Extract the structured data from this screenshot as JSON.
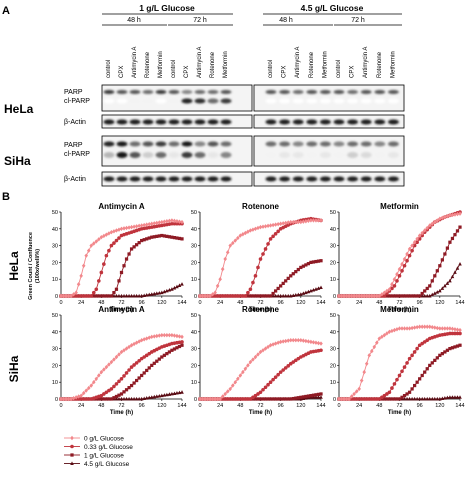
{
  "panel_a": {
    "letter": "A",
    "glucose_groups": [
      "1 g/L Glucose",
      "4.5 g/L Glucose"
    ],
    "time_groups": [
      "48 h",
      "72 h",
      "48 h",
      "72 h"
    ],
    "lane_labels": [
      "control",
      "CPX",
      "Antimycin A",
      "Rotenone",
      "Metformin",
      "control",
      "CPX",
      "Antimycin A",
      "Rotenone",
      "Metformin",
      "control",
      "CPX",
      "Antimycin A",
      "Rotenone",
      "Metformin",
      "control",
      "CPX",
      "Antimycin A",
      "Rotenone",
      "Metformin"
    ],
    "cell_lines": [
      {
        "name": "HeLa",
        "bands": [
          "PARP",
          "cl-PARP",
          "β-Actin"
        ]
      },
      {
        "name": "SiHa",
        "bands": [
          "PARP",
          "cl-PARP",
          "β-Actin"
        ]
      }
    ]
  },
  "panel_b": {
    "letter": "B",
    "y_label_1": "Green Count / Confluence",
    "y_label_2": "(100x/well/%)",
    "x_label": "Time (h)",
    "rows": [
      "HeLa",
      "SiHa"
    ],
    "colors": {
      "g0": "#f2888c",
      "g033": "#c0343d",
      "g1": "#8e1a24",
      "g45": "#5a0c14"
    },
    "legend": [
      {
        "key": "g0",
        "label": "0 g/L Glucose",
        "marker": "diamond"
      },
      {
        "key": "g033",
        "label": "0.33 g/L Glucose",
        "marker": "circle"
      },
      {
        "key": "g1",
        "label": "1 g/L Glucose",
        "marker": "square"
      },
      {
        "key": "g45",
        "label": "4.5 g/L Glucose",
        "marker": "triangle"
      }
    ]
  },
  "chart_data": [
    {
      "type": "line",
      "title": "Antimycin A",
      "row": "HeLa",
      "xlabel": "Time (h)",
      "xlim": [
        0,
        144
      ],
      "ylim": [
        0,
        50
      ],
      "xticks": [
        0,
        24,
        48,
        72,
        96,
        120,
        144
      ],
      "yticks": [
        0,
        10,
        20,
        30,
        40,
        50
      ],
      "series": [
        {
          "name": "0 g/L Glucose",
          "key": "g0",
          "x": [
            0,
            12,
            18,
            24,
            30,
            36,
            48,
            60,
            72,
            84,
            96,
            108,
            120,
            132,
            144
          ],
          "y": [
            0,
            0,
            2,
            12,
            24,
            30,
            35,
            38,
            40,
            41,
            42,
            43,
            44,
            45,
            44
          ]
        },
        {
          "name": "0.33 g/L Glucose",
          "key": "g033",
          "x": [
            0,
            36,
            42,
            48,
            54,
            60,
            72,
            84,
            96,
            108,
            120,
            132,
            144
          ],
          "y": [
            0,
            0,
            4,
            14,
            24,
            30,
            36,
            38,
            40,
            41,
            42,
            43,
            43
          ]
        },
        {
          "name": "1 g/L Glucose",
          "key": "g1",
          "x": [
            0,
            60,
            66,
            72,
            78,
            84,
            96,
            108,
            120,
            132,
            144
          ],
          "y": [
            0,
            0,
            4,
            14,
            22,
            28,
            33,
            35,
            36,
            35,
            34
          ]
        },
        {
          "name": "4.5 g/L Glucose",
          "key": "g45",
          "x": [
            0,
            96,
            108,
            120,
            132,
            144
          ],
          "y": [
            0,
            0,
            1,
            2,
            4,
            7
          ]
        }
      ]
    },
    {
      "type": "line",
      "title": "Rotenone",
      "row": "HeLa",
      "xlabel": "Time (h)",
      "xlim": [
        0,
        144
      ],
      "ylim": [
        0,
        50
      ],
      "xticks": [
        0,
        24,
        48,
        72,
        96,
        120,
        144
      ],
      "yticks": [
        0,
        10,
        20,
        30,
        40,
        50
      ],
      "series": [
        {
          "name": "0 g/L Glucose",
          "key": "g0",
          "x": [
            0,
            12,
            18,
            24,
            30,
            36,
            48,
            60,
            72,
            84,
            96,
            108,
            120,
            132,
            144
          ],
          "y": [
            0,
            0,
            2,
            10,
            22,
            30,
            36,
            39,
            41,
            42,
            43,
            44,
            44,
            45,
            45
          ]
        },
        {
          "name": "0.33 g/L Glucose",
          "key": "g033",
          "x": [
            0,
            54,
            60,
            66,
            72,
            84,
            96,
            108,
            120,
            132,
            144
          ],
          "y": [
            0,
            0,
            4,
            12,
            22,
            34,
            40,
            43,
            45,
            46,
            45
          ]
        },
        {
          "name": "1 g/L Glucose",
          "key": "g1",
          "x": [
            0,
            84,
            96,
            108,
            120,
            132,
            144
          ],
          "y": [
            0,
            0,
            6,
            12,
            17,
            20,
            21
          ]
        },
        {
          "name": "4.5 g/L Glucose",
          "key": "g45",
          "x": [
            0,
            108,
            120,
            132,
            144
          ],
          "y": [
            0,
            0,
            1,
            3,
            5
          ]
        }
      ]
    },
    {
      "type": "line",
      "title": "Metformin",
      "row": "HeLa",
      "xlabel": "Time (h)",
      "xlim": [
        0,
        144
      ],
      "ylim": [
        0,
        50
      ],
      "xticks": [
        0,
        24,
        48,
        72,
        96,
        120,
        144
      ],
      "yticks": [
        0,
        10,
        20,
        30,
        40,
        50
      ],
      "series": [
        {
          "name": "0 g/L Glucose",
          "key": "g0",
          "x": [
            0,
            48,
            60,
            72,
            84,
            96,
            108,
            120,
            132,
            144
          ],
          "y": [
            0,
            0,
            4,
            16,
            28,
            36,
            42,
            46,
            48,
            49
          ]
        },
        {
          "name": "0.33 g/L Glucose",
          "key": "g033",
          "x": [
            0,
            54,
            66,
            78,
            90,
            102,
            114,
            126,
            138,
            144
          ],
          "y": [
            0,
            0,
            6,
            18,
            30,
            38,
            44,
            47,
            49,
            50
          ]
        },
        {
          "name": "1 g/L Glucose",
          "key": "g1",
          "x": [
            0,
            96,
            108,
            120,
            132,
            144
          ],
          "y": [
            0,
            0,
            6,
            18,
            32,
            41
          ]
        },
        {
          "name": "4.5 g/L Glucose",
          "key": "g45",
          "x": [
            0,
            108,
            120,
            132,
            144
          ],
          "y": [
            0,
            0,
            3,
            9,
            19
          ]
        }
      ]
    },
    {
      "type": "line",
      "title": "Antimycin A",
      "row": "SiHa",
      "xlabel": "Time (h)",
      "xlim": [
        0,
        144
      ],
      "ylim": [
        0,
        50
      ],
      "xticks": [
        0,
        24,
        48,
        72,
        96,
        120,
        144
      ],
      "yticks": [
        0,
        10,
        20,
        30,
        40,
        50
      ],
      "series": [
        {
          "name": "0 g/L Glucose",
          "key": "g0",
          "x": [
            0,
            12,
            24,
            36,
            48,
            60,
            72,
            84,
            96,
            108,
            120,
            132,
            144
          ],
          "y": [
            0,
            0,
            2,
            8,
            16,
            22,
            28,
            32,
            35,
            37,
            38,
            38,
            37
          ]
        },
        {
          "name": "0.33 g/L Glucose",
          "key": "g033",
          "x": [
            0,
            36,
            48,
            60,
            72,
            84,
            96,
            108,
            120,
            132,
            144
          ],
          "y": [
            0,
            0,
            2,
            6,
            12,
            19,
            24,
            28,
            31,
            33,
            34
          ]
        },
        {
          "name": "1 g/L Glucose",
          "key": "g1",
          "x": [
            0,
            60,
            72,
            84,
            96,
            108,
            120,
            132,
            144
          ],
          "y": [
            0,
            0,
            3,
            8,
            14,
            20,
            25,
            29,
            32
          ]
        },
        {
          "name": "4.5 g/L Glucose",
          "key": "g45",
          "x": [
            0,
            96,
            108,
            120,
            132,
            144
          ],
          "y": [
            0,
            0,
            1,
            2,
            3,
            4
          ]
        }
      ]
    },
    {
      "type": "line",
      "title": "Rotenone",
      "row": "SiHa",
      "xlabel": "Time (h)",
      "xlim": [
        0,
        144
      ],
      "ylim": [
        0,
        50
      ],
      "xticks": [
        0,
        24,
        48,
        72,
        96,
        120,
        144
      ],
      "yticks": [
        0,
        10,
        20,
        30,
        40,
        50
      ],
      "series": [
        {
          "name": "0 g/L Glucose",
          "key": "g0",
          "x": [
            0,
            24,
            36,
            48,
            60,
            72,
            84,
            96,
            108,
            120,
            132,
            144
          ],
          "y": [
            0,
            0,
            6,
            14,
            22,
            28,
            32,
            34,
            35,
            35,
            34,
            33
          ]
        },
        {
          "name": "0.33 g/L Glucose",
          "key": "g033",
          "x": [
            0,
            60,
            72,
            84,
            96,
            108,
            120,
            132,
            144
          ],
          "y": [
            0,
            0,
            4,
            10,
            16,
            21,
            25,
            28,
            29
          ]
        },
        {
          "name": "1 g/L Glucose",
          "key": "g1",
          "x": [
            0,
            108,
            120,
            132,
            144
          ],
          "y": [
            0,
            0,
            1,
            2,
            3
          ]
        },
        {
          "name": "4.5 g/L Glucose",
          "key": "g45",
          "x": [
            0,
            120,
            132,
            144
          ],
          "y": [
            0,
            0,
            1,
            1
          ]
        }
      ]
    },
    {
      "type": "line",
      "title": "Metformin",
      "row": "SiHa",
      "xlabel": "Time (h)",
      "xlim": [
        0,
        144
      ],
      "ylim": [
        0,
        50
      ],
      "xticks": [
        0,
        24,
        48,
        72,
        96,
        120,
        144
      ],
      "yticks": [
        0,
        10,
        20,
        30,
        40,
        50
      ],
      "series": [
        {
          "name": "0 g/L Glucose",
          "key": "g0",
          "x": [
            0,
            12,
            24,
            30,
            36,
            48,
            60,
            72,
            84,
            96,
            108,
            120,
            132,
            144
          ],
          "y": [
            0,
            0,
            6,
            16,
            26,
            36,
            40,
            42,
            42,
            43,
            43,
            42,
            42,
            41
          ]
        },
        {
          "name": "0.33 g/L Glucose",
          "key": "g033",
          "x": [
            0,
            48,
            60,
            72,
            84,
            96,
            108,
            120,
            132,
            144
          ],
          "y": [
            0,
            0,
            4,
            14,
            24,
            32,
            36,
            38,
            39,
            39
          ]
        },
        {
          "name": "1 g/L Glucose",
          "key": "g1",
          "x": [
            0,
            72,
            84,
            96,
            108,
            120,
            132,
            144
          ],
          "y": [
            0,
            0,
            4,
            12,
            20,
            26,
            30,
            32
          ]
        },
        {
          "name": "4.5 g/L Glucose",
          "key": "g45",
          "x": [
            0,
            120,
            132,
            144
          ],
          "y": [
            0,
            0,
            1,
            1
          ]
        }
      ]
    }
  ]
}
